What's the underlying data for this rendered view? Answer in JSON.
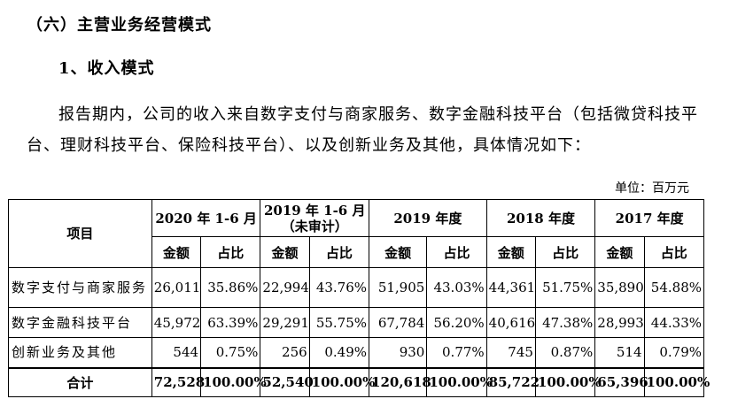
{
  "heading_section": "（六）主营业务经营模式",
  "heading_sub": "1、收入模式",
  "paragraph": "报告期内，公司的收入来自数字支付与商家服务、数字金融科技平台（包括微贷科技平台、理财科技平台、保险科技平台）、以及创新业务及其他，具体情况如下：",
  "unit_label": "单位：百万元",
  "table": {
    "item_header": "项目",
    "periods": [
      {
        "label": "2020 年 1-6 月"
      },
      {
        "label": "2019 年 1-6 月（未审计）"
      },
      {
        "label": "2019 年度"
      },
      {
        "label": "2018 年度"
      },
      {
        "label": "2017 年度"
      }
    ],
    "sub_amount": "金额",
    "sub_ratio": "占比",
    "rows": [
      {
        "name": "数字支付与商家服务",
        "cells": [
          "26,011",
          "35.86%",
          "22,994",
          "43.76%",
          "51,905",
          "43.03%",
          "44,361",
          "51.75%",
          "35,890",
          "54.88%"
        ]
      },
      {
        "name": "数字金融科技平台",
        "cells": [
          "45,972",
          "63.39%",
          "29,291",
          "55.75%",
          "67,784",
          "56.20%",
          "40,616",
          "47.38%",
          "28,993",
          "44.33%"
        ]
      },
      {
        "name": "创新业务及其他",
        "cells": [
          "544",
          "0.75%",
          "256",
          "0.49%",
          "930",
          "0.77%",
          "745",
          "0.87%",
          "514",
          "0.79%"
        ]
      }
    ],
    "total": {
      "name": "合计",
      "cells": [
        "72,528",
        "100.00%",
        "52,540",
        "100.00%",
        "120,618",
        "100.00%",
        "85,722",
        "100.00%",
        "65,396",
        "100.00%"
      ]
    }
  }
}
